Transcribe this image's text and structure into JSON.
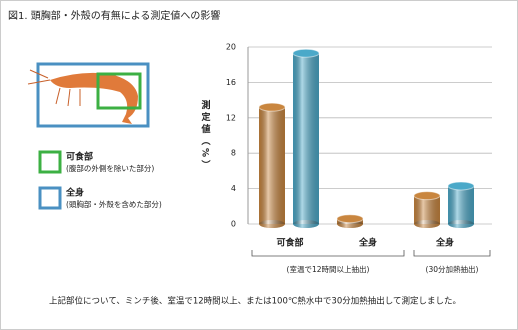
{
  "chart_data": {
    "type": "bar",
    "title": "図1. 頭胸部・外殻の有無による測定値への影響",
    "ylabel": "測定値（%）",
    "categories": [
      "可食部",
      "全身",
      "全身"
    ],
    "series": [
      {
        "color": "#c9863f",
        "values": [
          13.2,
          0.6,
          3.2
        ]
      },
      {
        "color": "#4ba9c9",
        "values": [
          19.3,
          null,
          4.3
        ]
      }
    ],
    "groups": [
      "(室温で12時間以上抽出)",
      "(30分加熱抽出)"
    ],
    "ylim": [
      0,
      20
    ],
    "yticks": [
      0,
      4,
      8,
      12,
      16,
      20
    ],
    "grid": true,
    "legend": [
      {
        "label": "可食部",
        "description": "(腹部の外側を除いた部分)",
        "color": "#3cb043"
      },
      {
        "label": "全身",
        "description": "(頭胸部・外殻を含めた部分)",
        "color": "#4a90c2"
      }
    ],
    "note": "上記部位について、ミンチ後、室温で12時間以上、または100℃熱水中で30分加熱抽出して測定しました。"
  }
}
